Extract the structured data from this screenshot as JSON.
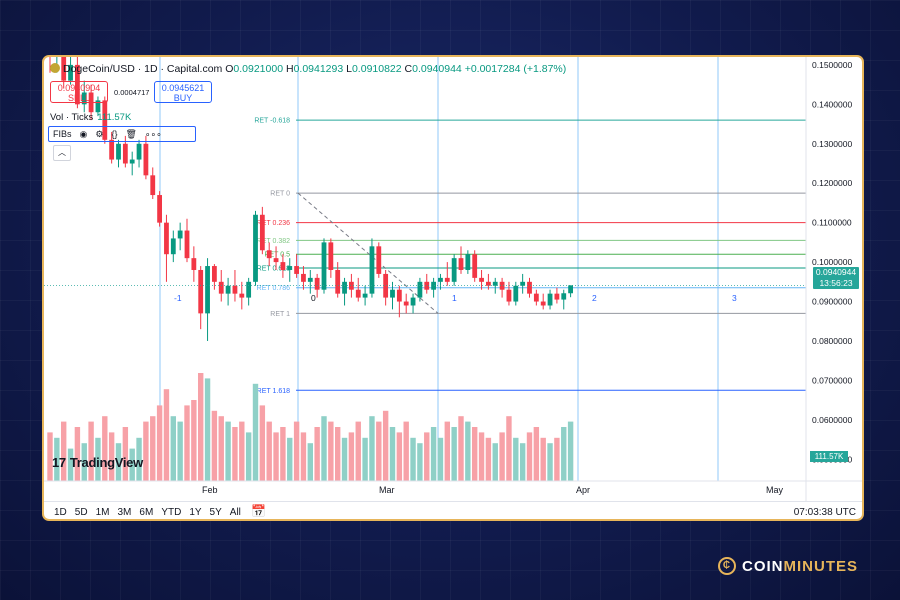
{
  "header": {
    "symbol": "DogeCoin/USD · 1D · Capital.com",
    "open_label": "O",
    "open": "0.0921000",
    "high_label": "H",
    "high": "0.0941293",
    "low_label": "L",
    "low": "0.0910822",
    "close_label": "C",
    "close": "0.0940944",
    "change": "+0.0017284 (+1.87%)"
  },
  "trade": {
    "sell_price": "0.0940904",
    "sell_label": "SELL",
    "spread": "0.0004717",
    "buy_price": "0.0945621",
    "buy_label": "BUY"
  },
  "volume": {
    "label": "Vol · Ticks",
    "value": "111.57K"
  },
  "toolbar": {
    "label": "FIBs",
    "more": "∘∘∘"
  },
  "watermark": "TradingView",
  "price_tag": {
    "price": "0.0940944",
    "countdown": "13:56:23"
  },
  "vol_tag": "111.57K",
  "bottom": {
    "ranges": [
      "1D",
      "5D",
      "1M",
      "3M",
      "6M",
      "YTD",
      "1Y",
      "5Y",
      "All"
    ],
    "time": "07:03:38 UTC"
  },
  "brand": {
    "prefix": "COIN",
    "suffix": "MINUTES"
  },
  "chart_data": {
    "type": "candlestick",
    "y_axis": {
      "ticks": [
        "0.1500000",
        "0.1400000",
        "0.1300000",
        "0.1200000",
        "0.1100000",
        "0.1000000",
        "0.0900000",
        "0.0800000",
        "0.0700000",
        "0.0600000",
        "0.0500000"
      ],
      "ylim": [
        0.0445,
        0.152
      ]
    },
    "x_axis": {
      "ticks": [
        "Feb",
        "Mar",
        "Apr",
        "May"
      ]
    },
    "fib_levels": [
      {
        "label": "RET -0.618",
        "value": 0.136,
        "color": "#26a69a"
      },
      {
        "label": "RET 0",
        "value": 0.1175,
        "color": "#9598a1"
      },
      {
        "label": "RET 0.236",
        "value": 0.11,
        "color": "#f23645"
      },
      {
        "label": "RET 0.382",
        "value": 0.1055,
        "color": "#81c784"
      },
      {
        "label": "RET 0.5",
        "value": 0.102,
        "color": "#4caf50"
      },
      {
        "label": "RET 0.618",
        "value": 0.0985,
        "color": "#089981"
      },
      {
        "label": "RET 0.786",
        "value": 0.0935,
        "color": "#64b5f6"
      },
      {
        "label": "RET 1",
        "value": 0.087,
        "color": "#9598a1"
      },
      {
        "label": "RET 1.618",
        "value": 0.0675,
        "color": "#2962ff"
      }
    ],
    "time_zones": [
      "-1",
      "0",
      "1",
      "2",
      "3"
    ],
    "candles": [
      {
        "o": 0.156,
        "h": 0.158,
        "l": 0.148,
        "c": 0.152,
        "v": 0.45
      },
      {
        "o": 0.152,
        "h": 0.156,
        "l": 0.148,
        "c": 0.154,
        "v": 0.4
      },
      {
        "o": 0.154,
        "h": 0.156,
        "l": 0.144,
        "c": 0.146,
        "v": 0.55
      },
      {
        "o": 0.146,
        "h": 0.153,
        "l": 0.145,
        "c": 0.15,
        "v": 0.3
      },
      {
        "o": 0.15,
        "h": 0.152,
        "l": 0.139,
        "c": 0.14,
        "v": 0.5
      },
      {
        "o": 0.14,
        "h": 0.146,
        "l": 0.138,
        "c": 0.143,
        "v": 0.35
      },
      {
        "o": 0.143,
        "h": 0.145,
        "l": 0.136,
        "c": 0.138,
        "v": 0.55
      },
      {
        "o": 0.138,
        "h": 0.142,
        "l": 0.137,
        "c": 0.141,
        "v": 0.4
      },
      {
        "o": 0.141,
        "h": 0.142,
        "l": 0.13,
        "c": 0.131,
        "v": 0.6
      },
      {
        "o": 0.131,
        "h": 0.133,
        "l": 0.125,
        "c": 0.126,
        "v": 0.45
      },
      {
        "o": 0.126,
        "h": 0.131,
        "l": 0.124,
        "c": 0.13,
        "v": 0.35
      },
      {
        "o": 0.13,
        "h": 0.132,
        "l": 0.124,
        "c": 0.125,
        "v": 0.5
      },
      {
        "o": 0.125,
        "h": 0.128,
        "l": 0.122,
        "c": 0.126,
        "v": 0.3
      },
      {
        "o": 0.126,
        "h": 0.131,
        "l": 0.124,
        "c": 0.13,
        "v": 0.4
      },
      {
        "o": 0.13,
        "h": 0.132,
        "l": 0.121,
        "c": 0.122,
        "v": 0.55
      },
      {
        "o": 0.122,
        "h": 0.124,
        "l": 0.116,
        "c": 0.117,
        "v": 0.6
      },
      {
        "o": 0.117,
        "h": 0.118,
        "l": 0.109,
        "c": 0.11,
        "v": 0.7
      },
      {
        "o": 0.11,
        "h": 0.112,
        "l": 0.095,
        "c": 0.102,
        "v": 0.85
      },
      {
        "o": 0.102,
        "h": 0.108,
        "l": 0.1,
        "c": 0.106,
        "v": 0.6
      },
      {
        "o": 0.106,
        "h": 0.11,
        "l": 0.103,
        "c": 0.108,
        "v": 0.55
      },
      {
        "o": 0.108,
        "h": 0.111,
        "l": 0.1,
        "c": 0.101,
        "v": 0.7
      },
      {
        "o": 0.101,
        "h": 0.104,
        "l": 0.095,
        "c": 0.098,
        "v": 0.75
      },
      {
        "o": 0.098,
        "h": 0.099,
        "l": 0.083,
        "c": 0.087,
        "v": 1.0
      },
      {
        "o": 0.087,
        "h": 0.101,
        "l": 0.08,
        "c": 0.099,
        "v": 0.95
      },
      {
        "o": 0.099,
        "h": 0.0995,
        "l": 0.093,
        "c": 0.095,
        "v": 0.65
      },
      {
        "o": 0.095,
        "h": 0.098,
        "l": 0.09,
        "c": 0.092,
        "v": 0.6
      },
      {
        "o": 0.092,
        "h": 0.096,
        "l": 0.089,
        "c": 0.094,
        "v": 0.55
      },
      {
        "o": 0.094,
        "h": 0.098,
        "l": 0.09,
        "c": 0.092,
        "v": 0.5
      },
      {
        "o": 0.092,
        "h": 0.095,
        "l": 0.088,
        "c": 0.091,
        "v": 0.55
      },
      {
        "o": 0.091,
        "h": 0.096,
        "l": 0.089,
        "c": 0.095,
        "v": 0.45
      },
      {
        "o": 0.095,
        "h": 0.113,
        "l": 0.094,
        "c": 0.112,
        "v": 0.9
      },
      {
        "o": 0.112,
        "h": 0.114,
        "l": 0.102,
        "c": 0.103,
        "v": 0.7
      },
      {
        "o": 0.103,
        "h": 0.105,
        "l": 0.099,
        "c": 0.101,
        "v": 0.55
      },
      {
        "o": 0.101,
        "h": 0.104,
        "l": 0.098,
        "c": 0.1,
        "v": 0.45
      },
      {
        "o": 0.1,
        "h": 0.102,
        "l": 0.096,
        "c": 0.098,
        "v": 0.5
      },
      {
        "o": 0.098,
        "h": 0.101,
        "l": 0.095,
        "c": 0.099,
        "v": 0.4
      },
      {
        "o": 0.099,
        "h": 0.102,
        "l": 0.096,
        "c": 0.097,
        "v": 0.55
      },
      {
        "o": 0.097,
        "h": 0.099,
        "l": 0.093,
        "c": 0.095,
        "v": 0.45
      },
      {
        "o": 0.095,
        "h": 0.098,
        "l": 0.092,
        "c": 0.096,
        "v": 0.35
      },
      {
        "o": 0.096,
        "h": 0.097,
        "l": 0.091,
        "c": 0.093,
        "v": 0.5
      },
      {
        "o": 0.093,
        "h": 0.106,
        "l": 0.092,
        "c": 0.105,
        "v": 0.6
      },
      {
        "o": 0.105,
        "h": 0.106,
        "l": 0.096,
        "c": 0.098,
        "v": 0.55
      },
      {
        "o": 0.098,
        "h": 0.1,
        "l": 0.091,
        "c": 0.092,
        "v": 0.5
      },
      {
        "o": 0.092,
        "h": 0.096,
        "l": 0.089,
        "c": 0.095,
        "v": 0.4
      },
      {
        "o": 0.095,
        "h": 0.097,
        "l": 0.091,
        "c": 0.093,
        "v": 0.45
      },
      {
        "o": 0.093,
        "h": 0.096,
        "l": 0.09,
        "c": 0.091,
        "v": 0.55
      },
      {
        "o": 0.091,
        "h": 0.094,
        "l": 0.089,
        "c": 0.092,
        "v": 0.4
      },
      {
        "o": 0.092,
        "h": 0.106,
        "l": 0.091,
        "c": 0.104,
        "v": 0.6
      },
      {
        "o": 0.104,
        "h": 0.105,
        "l": 0.096,
        "c": 0.097,
        "v": 0.55
      },
      {
        "o": 0.097,
        "h": 0.098,
        "l": 0.089,
        "c": 0.091,
        "v": 0.65
      },
      {
        "o": 0.091,
        "h": 0.095,
        "l": 0.088,
        "c": 0.093,
        "v": 0.5
      },
      {
        "o": 0.093,
        "h": 0.094,
        "l": 0.086,
        "c": 0.09,
        "v": 0.45
      },
      {
        "o": 0.09,
        "h": 0.092,
        "l": 0.087,
        "c": 0.089,
        "v": 0.55
      },
      {
        "o": 0.089,
        "h": 0.092,
        "l": 0.087,
        "c": 0.091,
        "v": 0.4
      },
      {
        "o": 0.091,
        "h": 0.096,
        "l": 0.09,
        "c": 0.095,
        "v": 0.35
      },
      {
        "o": 0.095,
        "h": 0.097,
        "l": 0.092,
        "c": 0.093,
        "v": 0.45
      },
      {
        "o": 0.093,
        "h": 0.096,
        "l": 0.091,
        "c": 0.095,
        "v": 0.5
      },
      {
        "o": 0.095,
        "h": 0.097,
        "l": 0.093,
        "c": 0.096,
        "v": 0.4
      },
      {
        "o": 0.096,
        "h": 0.1,
        "l": 0.094,
        "c": 0.095,
        "v": 0.55
      },
      {
        "o": 0.095,
        "h": 0.102,
        "l": 0.094,
        "c": 0.101,
        "v": 0.5
      },
      {
        "o": 0.101,
        "h": 0.104,
        "l": 0.097,
        "c": 0.098,
        "v": 0.6
      },
      {
        "o": 0.098,
        "h": 0.103,
        "l": 0.097,
        "c": 0.102,
        "v": 0.55
      },
      {
        "o": 0.102,
        "h": 0.103,
        "l": 0.095,
        "c": 0.096,
        "v": 0.5
      },
      {
        "o": 0.096,
        "h": 0.098,
        "l": 0.093,
        "c": 0.095,
        "v": 0.45
      },
      {
        "o": 0.095,
        "h": 0.097,
        "l": 0.093,
        "c": 0.094,
        "v": 0.4
      },
      {
        "o": 0.094,
        "h": 0.096,
        "l": 0.092,
        "c": 0.095,
        "v": 0.35
      },
      {
        "o": 0.095,
        "h": 0.096,
        "l": 0.091,
        "c": 0.093,
        "v": 0.45
      },
      {
        "o": 0.093,
        "h": 0.095,
        "l": 0.089,
        "c": 0.09,
        "v": 0.6
      },
      {
        "o": 0.09,
        "h": 0.095,
        "l": 0.089,
        "c": 0.094,
        "v": 0.4
      },
      {
        "o": 0.094,
        "h": 0.097,
        "l": 0.092,
        "c": 0.095,
        "v": 0.35
      },
      {
        "o": 0.095,
        "h": 0.096,
        "l": 0.091,
        "c": 0.092,
        "v": 0.45
      },
      {
        "o": 0.092,
        "h": 0.093,
        "l": 0.089,
        "c": 0.09,
        "v": 0.5
      },
      {
        "o": 0.09,
        "h": 0.092,
        "l": 0.088,
        "c": 0.089,
        "v": 0.4
      },
      {
        "o": 0.089,
        "h": 0.093,
        "l": 0.088,
        "c": 0.092,
        "v": 0.35
      },
      {
        "o": 0.092,
        "h": 0.0935,
        "l": 0.0895,
        "c": 0.0905,
        "v": 0.4
      },
      {
        "o": 0.0905,
        "h": 0.093,
        "l": 0.088,
        "c": 0.0921,
        "v": 0.5
      },
      {
        "o": 0.0921,
        "h": 0.0941,
        "l": 0.0911,
        "c": 0.0941,
        "v": 0.55
      }
    ]
  }
}
